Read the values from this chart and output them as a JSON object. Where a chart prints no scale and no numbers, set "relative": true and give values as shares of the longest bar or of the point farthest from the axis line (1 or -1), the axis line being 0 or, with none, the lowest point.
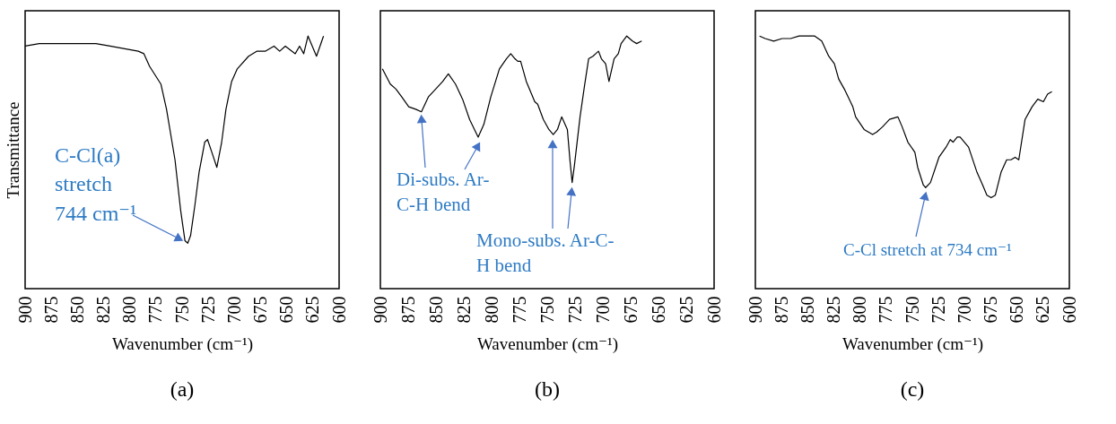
{
  "chart_data": [
    {
      "type": "line",
      "title": "(a)",
      "xlabel": "Wavenumber (cm⁻¹)",
      "ylabel": "Transmittance",
      "relative": true,
      "tick_labels": "x",
      "xlim": [
        900,
        600
      ],
      "xticks": [
        900,
        875,
        850,
        825,
        800,
        775,
        750,
        725,
        700,
        675,
        650,
        625,
        600
      ],
      "x": [
        900,
        886.5,
        859.5,
        832.4,
        818.9,
        791.9,
        786.5,
        781.1,
        770.3,
        764.9,
        756.8,
        751.4,
        747.3,
        744.6,
        741.9,
        737.8,
        733.8,
        728.4,
        725.7,
        721.6,
        716.8,
        712.2,
        708.1,
        702.7,
        697.3,
        686.5,
        678.4,
        670.3,
        662.2,
        656.8,
        651.4,
        641.9,
        637.8,
        633.8,
        629.7,
        621.6,
        614.9
      ],
      "series": [
        {
          "color": "#000000",
          "values": [
            0.96,
            0.97,
            0.97,
            0.97,
            0.96,
            0.94,
            0.93,
            0.88,
            0.81,
            0.71,
            0.51,
            0.31,
            0.19,
            0.18,
            0.21,
            0.33,
            0.46,
            0.58,
            0.59,
            0.54,
            0.48,
            0.58,
            0.71,
            0.82,
            0.87,
            0.92,
            0.94,
            0.94,
            0.96,
            0.94,
            0.96,
            0.93,
            0.96,
            0.93,
            1.0,
            0.92,
            1.0
          ]
        }
      ],
      "annotations": [
        {
          "text": "C-Cl(a) stretch 744 cm⁻¹",
          "x": 744.6,
          "y": 0.18
        }
      ]
    },
    {
      "type": "line",
      "title": "(b)",
      "xlabel": "Wavenumber (cm⁻¹)",
      "relative": true,
      "tick_labels": "x",
      "xlim": [
        900,
        600
      ],
      "xticks": [
        900,
        875,
        850,
        825,
        800,
        775,
        750,
        725,
        700,
        675,
        650,
        625,
        600
      ],
      "x": [
        898.2,
        891.1,
        886.0,
        880.9,
        874.5,
        868.2,
        863.1,
        856.7,
        850.3,
        844.0,
        838.9,
        832.5,
        826.1,
        819.8,
        812.1,
        807.0,
        800.7,
        793.0,
        786.7,
        782.8,
        779.0,
        776.5,
        773.9,
        768.8,
        761.2,
        758.6,
        753.5,
        748.5,
        744.6,
        740.8,
        737.0,
        731.9,
        729.4,
        727.6,
        725.5,
        720.5,
        716.6,
        712.8,
        708.9,
        706.4,
        703.9,
        701.3,
        697.5,
        694.5,
        689.9,
        686.1,
        683.6,
        678.5,
        673.4,
        669.6,
        665.1
      ],
      "series": [
        {
          "color": "#000000",
          "values": [
            0.87,
            0.81,
            0.79,
            0.76,
            0.72,
            0.71,
            0.7,
            0.76,
            0.79,
            0.82,
            0.85,
            0.81,
            0.75,
            0.67,
            0.6,
            0.65,
            0.76,
            0.87,
            0.91,
            0.93,
            0.91,
            0.9,
            0.9,
            0.82,
            0.74,
            0.73,
            0.67,
            0.63,
            0.61,
            0.63,
            0.68,
            0.63,
            0.5,
            0.42,
            0.49,
            0.68,
            0.8,
            0.91,
            0.92,
            0.93,
            0.94,
            0.91,
            0.89,
            0.82,
            0.91,
            0.93,
            0.97,
            1.0,
            0.98,
            0.97,
            0.98
          ]
        }
      ],
      "annotations": [
        "Di-subs. Ar-C-H bend",
        "Mono-subs. Ar-C-H bend"
      ]
    },
    {
      "type": "line",
      "title": "(c)",
      "xlabel": "Wavenumber (cm⁻¹)",
      "relative": true,
      "tick_labels": "x",
      "xlim": [
        900,
        600
      ],
      "xticks": [
        900,
        875,
        850,
        825,
        800,
        775,
        750,
        725,
        700,
        675,
        650,
        625,
        600
      ],
      "x": [
        896.0,
        890.6,
        882.5,
        874.4,
        866.3,
        858.2,
        850.1,
        843.3,
        836.6,
        829.9,
        824.5,
        820.4,
        815.0,
        806.9,
        804.2,
        796.1,
        788.0,
        784.0,
        778.6,
        771.8,
        763.8,
        759.7,
        754.3,
        747.6,
        744.9,
        739.5,
        737.3,
        732.7,
        724.6,
        717.8,
        713.8,
        711.1,
        707.1,
        704.4,
        696.3,
        688.2,
        682.8,
        678.8,
        674.7,
        670.7,
        665.3,
        659.9,
        655.8,
        651.8,
        648.3,
        642.3,
        635.6,
        630.2,
        624.8,
        620.8,
        616.7
      ],
      "series": [
        {
          "color": "#000000",
          "values": [
            1.0,
            0.99,
            0.98,
            0.99,
            0.99,
            1.0,
            1.0,
            1.0,
            0.98,
            0.92,
            0.89,
            0.83,
            0.79,
            0.72,
            0.68,
            0.63,
            0.61,
            0.62,
            0.64,
            0.67,
            0.68,
            0.64,
            0.58,
            0.54,
            0.48,
            0.41,
            0.4,
            0.42,
            0.52,
            0.56,
            0.59,
            0.58,
            0.6,
            0.6,
            0.56,
            0.46,
            0.41,
            0.37,
            0.36,
            0.37,
            0.46,
            0.51,
            0.51,
            0.52,
            0.51,
            0.67,
            0.72,
            0.75,
            0.74,
            0.77,
            0.78
          ]
        }
      ],
      "annotations": [
        "C-Cl stretch at 734 cm⁻¹"
      ]
    }
  ]
}
